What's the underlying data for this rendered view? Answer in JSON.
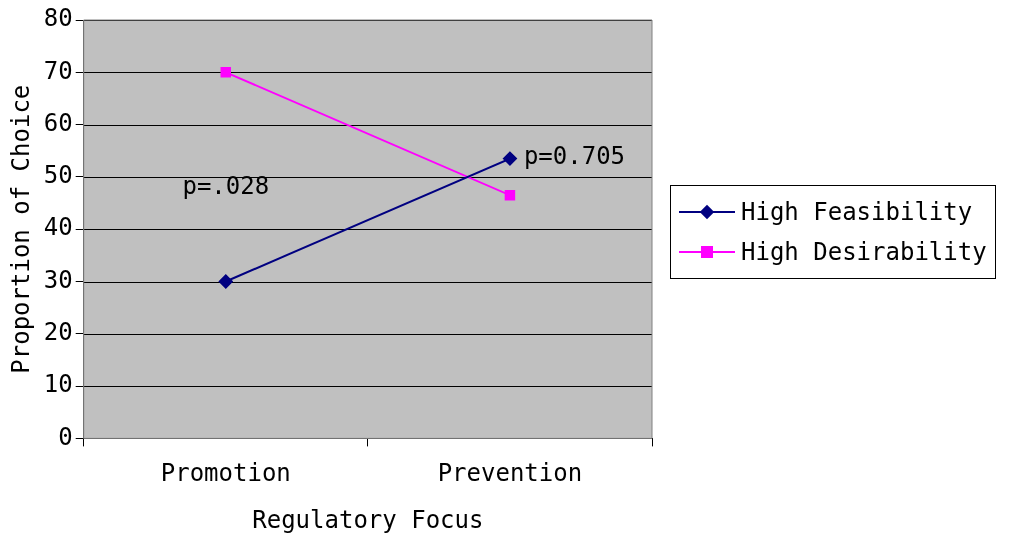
{
  "chart_data": {
    "type": "line",
    "xlabel": "Regulatory Focus",
    "ylabel": "Proportion of Choice",
    "categories": [
      "Promotion",
      "Prevention"
    ],
    "series": [
      {
        "name": "High Feasibility",
        "color": "#000080",
        "values": [
          30,
          53.5
        ],
        "marker": "diamond"
      },
      {
        "name": "High Desirability",
        "color": "#ff00ff",
        "values": [
          70,
          46.5
        ],
        "marker": "square"
      }
    ],
    "ylim": [
      0,
      80
    ],
    "yticks": [
      0,
      10,
      20,
      30,
      40,
      50,
      60,
      70,
      80
    ],
    "grid": "y",
    "legend": "right",
    "line_style": "solid",
    "annotations": [
      "p=.028",
      "p=0.705"
    ]
  }
}
